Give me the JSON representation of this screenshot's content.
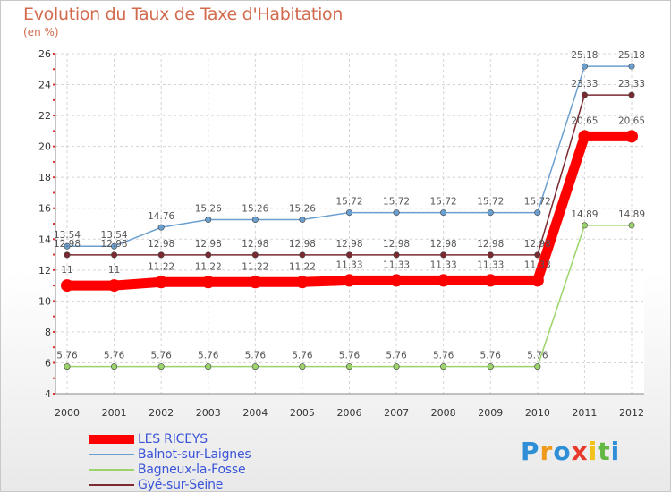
{
  "chart_data": {
    "type": "line",
    "title": "Evolution du Taux de Taxe d'Habitation",
    "subtitle": "(en %)",
    "x": [
      2000,
      2001,
      2002,
      2003,
      2004,
      2005,
      2006,
      2007,
      2008,
      2009,
      2010,
      2011,
      2012
    ],
    "ylim": [
      4,
      26
    ],
    "yticks": [
      4,
      6,
      8,
      10,
      12,
      14,
      16,
      18,
      20,
      22,
      24,
      26
    ],
    "grid": true,
    "legend_position": "bottom-left",
    "series": [
      {
        "name": "LES RICEYS",
        "color": "#ff0000",
        "values": [
          11,
          11,
          11.22,
          11.22,
          11.22,
          11.22,
          11.33,
          11.33,
          11.33,
          11.33,
          11.33,
          20.65,
          20.65
        ],
        "labels": [
          "11",
          "11",
          "11.22",
          "11.22",
          "11.22",
          "11.22",
          "11.33",
          "11.33",
          "11.33",
          "11.33",
          "11.33",
          "20.65",
          "20.65"
        ]
      },
      {
        "name": "Balnot-sur-Laignes",
        "color": "#6a9fcf",
        "values": [
          13.54,
          13.54,
          14.76,
          15.26,
          15.26,
          15.26,
          15.72,
          15.72,
          15.72,
          15.72,
          15.72,
          25.18,
          25.18
        ],
        "labels": [
          "13.54",
          "13.54",
          "14.76",
          "15.26",
          "15.26",
          "15.26",
          "15.72",
          "15.72",
          "15.72",
          "15.72",
          "15.72",
          "25.18",
          "25.18"
        ]
      },
      {
        "name": "Bagneux-la-Fosse",
        "color": "#9ad46b",
        "values": [
          5.76,
          5.76,
          5.76,
          5.76,
          5.76,
          5.76,
          5.76,
          5.76,
          5.76,
          5.76,
          5.76,
          14.89,
          14.89
        ],
        "labels": [
          "5.76",
          "5.76",
          "5.76",
          "5.76",
          "5.76",
          "5.76",
          "5.76",
          "5.76",
          "5.76",
          "5.76",
          "5.76",
          "14.89",
          "14.89"
        ]
      },
      {
        "name": "Gyé-sur-Seine",
        "color": "#7a2a30",
        "values": [
          12.98,
          12.98,
          12.98,
          12.98,
          12.98,
          12.98,
          12.98,
          12.98,
          12.98,
          12.98,
          12.98,
          23.33,
          23.33
        ],
        "labels": [
          "12.98",
          "12.98",
          "12.98",
          "12.98",
          "12.98",
          "12.98",
          "12.98",
          "12.98",
          "12.98",
          "12.98",
          "12.98",
          "23.33",
          "23.33"
        ]
      }
    ]
  },
  "logo": {
    "letters": [
      "P",
      "r",
      "o",
      "x",
      "i",
      "t",
      "i"
    ],
    "colors": [
      "#2e8fd6",
      "#f09a1c",
      "#2e8fd6",
      "#e83a2a",
      "#f2c21a",
      "#62b843",
      "#2e8fd6"
    ]
  }
}
